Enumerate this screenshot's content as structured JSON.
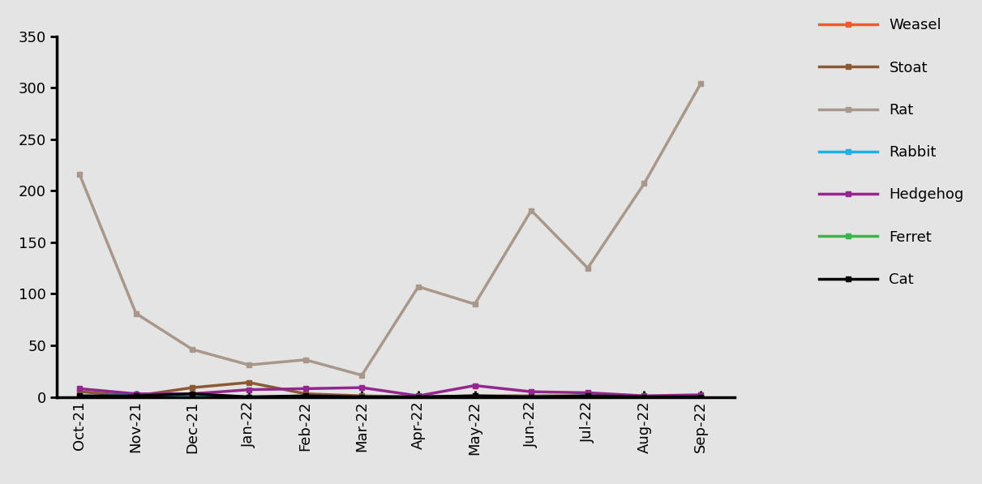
{
  "chart_data": {
    "type": "line",
    "categories": [
      "Oct-21",
      "Nov-21",
      "Dec-21",
      "Jan-22",
      "Feb-22",
      "Mar-22",
      "Apr-22",
      "May-22",
      "Jun-22",
      "Jul-22",
      "Aug-22",
      "Sep-22"
    ],
    "series": [
      {
        "name": "Weasel",
        "color": "#f15a29",
        "values": [
          0,
          0,
          0,
          0,
          0,
          0,
          0,
          0,
          0,
          0,
          0,
          0
        ]
      },
      {
        "name": "Stoat",
        "color": "#8c5a32",
        "values": [
          5,
          1,
          9,
          14,
          3,
          1,
          0,
          1,
          1,
          1,
          0,
          0
        ]
      },
      {
        "name": "Rat",
        "color": "#a8978a",
        "values": [
          216,
          81,
          46,
          31,
          36,
          21,
          107,
          90,
          181,
          125,
          207,
          304
        ]
      },
      {
        "name": "Rabbit",
        "color": "#1fb0e6",
        "values": [
          0,
          2,
          0,
          0,
          0,
          0,
          0,
          0,
          0,
          1,
          0,
          0
        ]
      },
      {
        "name": "Hedgehog",
        "color": "#93278f",
        "values": [
          8,
          3,
          3,
          7,
          8,
          9,
          1,
          11,
          5,
          4,
          1,
          2
        ]
      },
      {
        "name": "Ferret",
        "color": "#39b54a",
        "values": [
          0,
          0,
          0,
          0,
          0,
          0,
          0,
          0,
          0,
          0,
          0,
          0
        ]
      },
      {
        "name": "Cat",
        "color": "#000000",
        "values": [
          1,
          1,
          3,
          0,
          1,
          0,
          0,
          1,
          0,
          1,
          0,
          0
        ]
      }
    ],
    "ylim": [
      0,
      350
    ],
    "yticks": [
      0,
      50,
      100,
      150,
      200,
      250,
      300,
      350
    ],
    "grid": false,
    "legend": "upper right",
    "marker": "square",
    "line_style": "solid"
  }
}
